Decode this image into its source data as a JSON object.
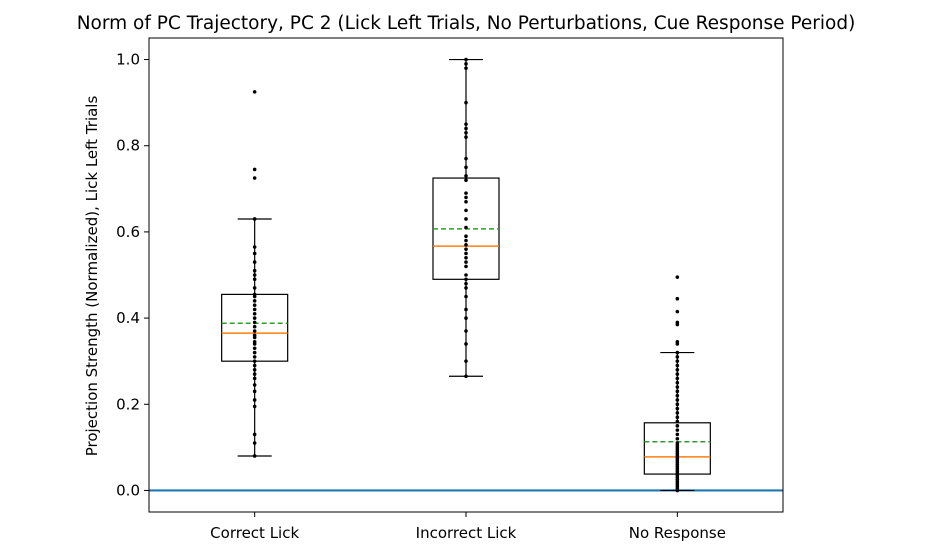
{
  "chart_data": {
    "type": "box",
    "title": "Norm of PC Trajectory, PC 2  (Lick Left Trials, No Perturbations, Cue Response Period)",
    "xlabel": "",
    "ylabel": "Projection Strength (Normalized), Lick Left Trials",
    "ylim": [
      -0.05,
      1.05
    ],
    "yticks": [
      0.0,
      0.2,
      0.4,
      0.6,
      0.8,
      1.0
    ],
    "ytick_labels": [
      "0.0",
      "0.2",
      "0.4",
      "0.6",
      "0.8",
      "1.0"
    ],
    "categories": [
      "Correct Lick",
      "Incorrect Lick",
      "No Response"
    ],
    "reference_line": {
      "y": 0.0,
      "color": "#1f77b4"
    },
    "colors": {
      "median": "#ff7f0e",
      "mean": "#2ca02c",
      "box": "#000000",
      "points": "#000000"
    },
    "grid": false,
    "legend": "none",
    "boxes": [
      {
        "category": "Correct Lick",
        "whisker_low": 0.08,
        "q1": 0.3,
        "median": 0.365,
        "q3": 0.455,
        "whisker_high": 0.63,
        "mean": 0.388,
        "points": [
          0.08,
          0.11,
          0.13,
          0.195,
          0.21,
          0.23,
          0.245,
          0.26,
          0.27,
          0.28,
          0.29,
          0.3,
          0.31,
          0.32,
          0.33,
          0.34,
          0.345,
          0.355,
          0.36,
          0.37,
          0.38,
          0.39,
          0.4,
          0.41,
          0.42,
          0.43,
          0.44,
          0.45,
          0.455,
          0.47,
          0.49,
          0.5,
          0.51,
          0.53,
          0.55,
          0.565,
          0.63,
          0.725,
          0.745,
          0.925
        ]
      },
      {
        "category": "Incorrect Lick",
        "whisker_low": 0.265,
        "q1": 0.49,
        "median": 0.567,
        "q3": 0.725,
        "whisker_high": 1.0,
        "mean": 0.607,
        "points": [
          0.265,
          0.3,
          0.34,
          0.37,
          0.4,
          0.42,
          0.45,
          0.47,
          0.48,
          0.49,
          0.5,
          0.52,
          0.53,
          0.54,
          0.55,
          0.56,
          0.57,
          0.58,
          0.59,
          0.61,
          0.63,
          0.65,
          0.67,
          0.68,
          0.69,
          0.72,
          0.73,
          0.75,
          0.77,
          0.82,
          0.83,
          0.84,
          0.85,
          0.9,
          0.98,
          0.99,
          1.0
        ]
      },
      {
        "category": "No Response",
        "whisker_low": 0.0,
        "q1": 0.038,
        "median": 0.078,
        "q3": 0.157,
        "whisker_high": 0.32,
        "mean": 0.113,
        "points": [
          0.0,
          0.005,
          0.01,
          0.015,
          0.02,
          0.025,
          0.03,
          0.035,
          0.04,
          0.045,
          0.05,
          0.055,
          0.06,
          0.065,
          0.07,
          0.075,
          0.08,
          0.085,
          0.09,
          0.095,
          0.1,
          0.105,
          0.11,
          0.12,
          0.13,
          0.14,
          0.15,
          0.16,
          0.17,
          0.18,
          0.19,
          0.2,
          0.21,
          0.22,
          0.23,
          0.24,
          0.25,
          0.26,
          0.27,
          0.28,
          0.29,
          0.3,
          0.31,
          0.32,
          0.34,
          0.345,
          0.385,
          0.39,
          0.415,
          0.445,
          0.495
        ]
      }
    ]
  }
}
